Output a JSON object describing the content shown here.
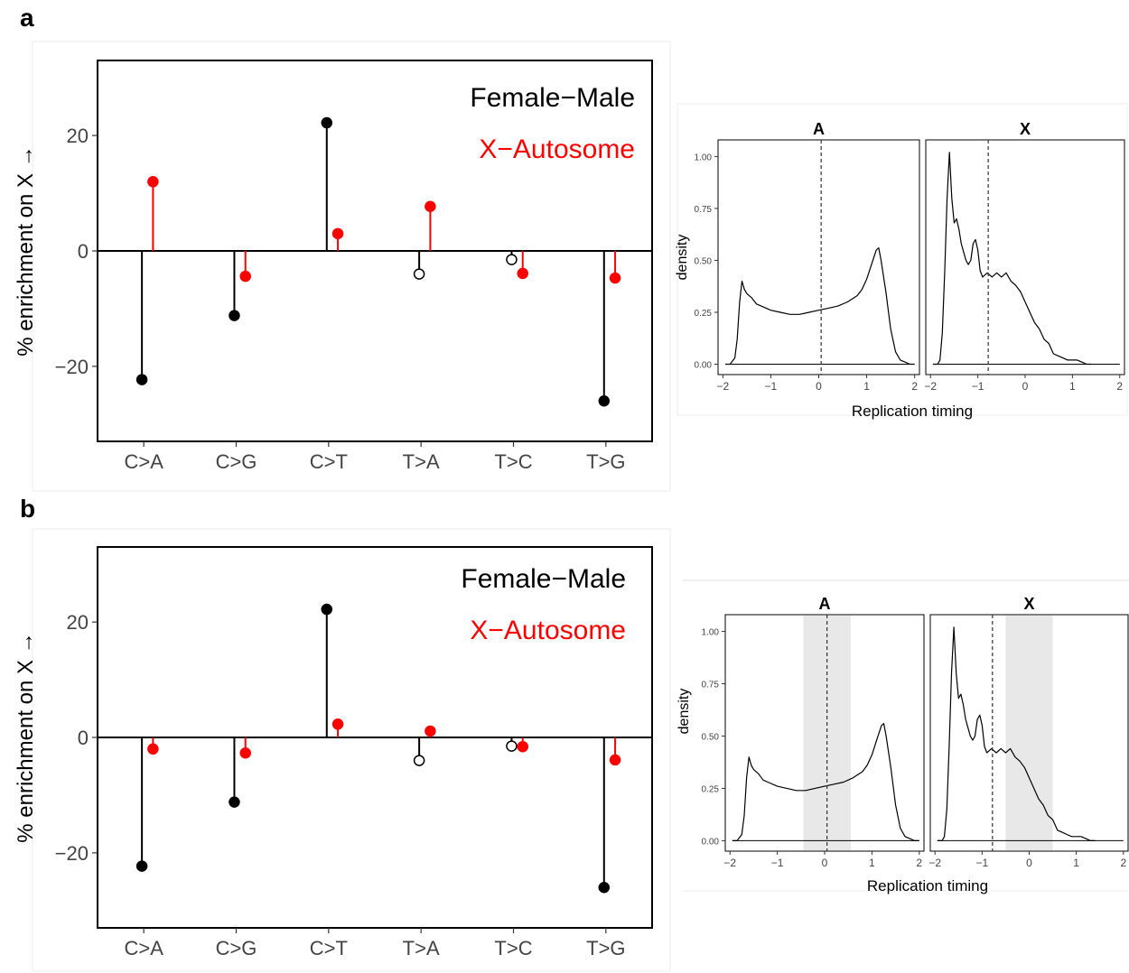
{
  "panels": [
    {
      "letter": "a"
    },
    {
      "letter": "b"
    }
  ],
  "colors": {
    "female_male": "#000000",
    "x_autosome": "#ff0000",
    "shade": "#e8e8e8"
  },
  "chart_data": [
    {
      "id": "a-lollipop",
      "type": "lollipop",
      "ylabel": "% enrichment on X →",
      "ylim": [
        -33,
        33
      ],
      "yticks": [
        -20,
        0,
        20
      ],
      "categories": [
        "C>A",
        "C>G",
        "C>T",
        "T>A",
        "T>C",
        "T>G"
      ],
      "legend_placement": "top-right",
      "series": [
        {
          "name": "Female−Male",
          "color": "#000000",
          "values": [
            -22.3,
            -11.2,
            22.2,
            -4.0,
            -1.5,
            -26.0
          ],
          "open_markers": [
            false,
            false,
            false,
            true,
            true,
            false
          ]
        },
        {
          "name": "X−Autosome",
          "color": "#ff0000",
          "values": [
            12.0,
            -4.4,
            3.0,
            7.7,
            -3.9,
            -4.7
          ],
          "open_markers": [
            false,
            false,
            false,
            false,
            false,
            false
          ]
        }
      ]
    },
    {
      "id": "a-density",
      "type": "line",
      "xlabel": "Replication timing",
      "ylabel": "density",
      "xlim": [
        -2.1,
        2.1
      ],
      "ylim": [
        -0.05,
        1.08
      ],
      "xticks": [
        -2,
        -1,
        0,
        1,
        2
      ],
      "yticks": [
        0.0,
        0.25,
        0.5,
        0.75,
        1.0
      ],
      "ytick_labels": [
        "0.00",
        "0.25",
        "0.50",
        "0.75",
        "1.00"
      ],
      "facets": [
        {
          "title": "A",
          "vline": 0.05,
          "x": [
            -1.95,
            -1.85,
            -1.75,
            -1.7,
            -1.65,
            -1.6,
            -1.55,
            -1.5,
            -1.4,
            -1.3,
            -1.2,
            -1.0,
            -0.8,
            -0.6,
            -0.4,
            -0.2,
            0.0,
            0.2,
            0.4,
            0.6,
            0.8,
            0.9,
            1.0,
            1.1,
            1.2,
            1.25,
            1.3,
            1.4,
            1.5,
            1.6,
            1.7,
            1.8,
            1.9,
            2.0
          ],
          "y": [
            0.0,
            0.0,
            0.03,
            0.12,
            0.3,
            0.4,
            0.36,
            0.34,
            0.32,
            0.29,
            0.28,
            0.26,
            0.25,
            0.24,
            0.24,
            0.25,
            0.26,
            0.27,
            0.28,
            0.3,
            0.33,
            0.36,
            0.41,
            0.48,
            0.55,
            0.56,
            0.5,
            0.35,
            0.17,
            0.06,
            0.02,
            0.01,
            0.0,
            0.0
          ]
        },
        {
          "title": "X",
          "vline": -0.78,
          "x": [
            -1.95,
            -1.85,
            -1.8,
            -1.75,
            -1.7,
            -1.65,
            -1.6,
            -1.55,
            -1.5,
            -1.45,
            -1.4,
            -1.35,
            -1.3,
            -1.25,
            -1.2,
            -1.15,
            -1.1,
            -1.05,
            -1.0,
            -0.95,
            -0.9,
            -0.85,
            -0.8,
            -0.7,
            -0.6,
            -0.5,
            -0.4,
            -0.3,
            -0.2,
            -0.1,
            0.0,
            0.1,
            0.2,
            0.3,
            0.4,
            0.5,
            0.6,
            0.7,
            0.8,
            0.9,
            1.0,
            1.1,
            1.2,
            1.3,
            1.4
          ],
          "y": [
            0.0,
            0.0,
            0.02,
            0.15,
            0.45,
            0.8,
            1.02,
            0.8,
            0.68,
            0.7,
            0.65,
            0.58,
            0.54,
            0.5,
            0.48,
            0.5,
            0.58,
            0.6,
            0.55,
            0.45,
            0.42,
            0.43,
            0.44,
            0.42,
            0.44,
            0.42,
            0.44,
            0.4,
            0.38,
            0.35,
            0.3,
            0.25,
            0.2,
            0.17,
            0.12,
            0.1,
            0.05,
            0.04,
            0.03,
            0.02,
            0.02,
            0.02,
            0.01,
            0.0,
            0.0
          ]
        }
      ]
    },
    {
      "id": "b-lollipop",
      "type": "lollipop",
      "ylabel": "% enrichment on X →",
      "ylim": [
        -33,
        33
      ],
      "yticks": [
        -20,
        0,
        20
      ],
      "categories": [
        "C>A",
        "C>G",
        "C>T",
        "T>A",
        "T>C",
        "T>G"
      ],
      "legend_placement": "top-right",
      "series": [
        {
          "name": "Female−Male",
          "color": "#000000",
          "values": [
            -22.3,
            -11.2,
            22.2,
            -4.0,
            -1.5,
            -26.0
          ],
          "open_markers": [
            false,
            false,
            false,
            true,
            true,
            false
          ]
        },
        {
          "name": "X−Autosome",
          "color": "#ff0000",
          "values": [
            -2.0,
            -2.7,
            2.3,
            1.1,
            -1.6,
            -3.9
          ],
          "open_markers": [
            false,
            false,
            false,
            false,
            false,
            false
          ]
        }
      ]
    },
    {
      "id": "b-density",
      "type": "line",
      "xlabel": "Replication timing",
      "ylabel": "density",
      "xlim": [
        -2.1,
        2.1
      ],
      "ylim": [
        -0.05,
        1.08
      ],
      "xticks": [
        -2,
        -1,
        0,
        1,
        2
      ],
      "yticks": [
        0.0,
        0.25,
        0.5,
        0.75,
        1.0
      ],
      "ytick_labels": [
        "0.00",
        "0.25",
        "0.50",
        "0.75",
        "1.00"
      ],
      "facets": [
        {
          "title": "A",
          "vline": 0.05,
          "shade": [
            -0.45,
            0.55
          ],
          "x": [
            -1.95,
            -1.85,
            -1.75,
            -1.7,
            -1.65,
            -1.6,
            -1.55,
            -1.5,
            -1.4,
            -1.3,
            -1.2,
            -1.0,
            -0.8,
            -0.6,
            -0.4,
            -0.2,
            0.0,
            0.2,
            0.4,
            0.6,
            0.8,
            0.9,
            1.0,
            1.1,
            1.2,
            1.25,
            1.3,
            1.4,
            1.5,
            1.6,
            1.7,
            1.8,
            1.9,
            2.0
          ],
          "y": [
            0.0,
            0.0,
            0.03,
            0.12,
            0.3,
            0.4,
            0.36,
            0.34,
            0.32,
            0.29,
            0.28,
            0.26,
            0.25,
            0.24,
            0.24,
            0.25,
            0.26,
            0.27,
            0.28,
            0.3,
            0.33,
            0.36,
            0.41,
            0.48,
            0.55,
            0.56,
            0.5,
            0.35,
            0.17,
            0.06,
            0.02,
            0.01,
            0.0,
            0.0
          ]
        },
        {
          "title": "X",
          "vline": -0.78,
          "shade": [
            -0.5,
            0.5
          ],
          "x": [
            -1.95,
            -1.85,
            -1.8,
            -1.75,
            -1.7,
            -1.65,
            -1.6,
            -1.55,
            -1.5,
            -1.45,
            -1.4,
            -1.35,
            -1.3,
            -1.25,
            -1.2,
            -1.15,
            -1.1,
            -1.05,
            -1.0,
            -0.95,
            -0.9,
            -0.85,
            -0.8,
            -0.7,
            -0.6,
            -0.5,
            -0.4,
            -0.3,
            -0.2,
            -0.1,
            0.0,
            0.1,
            0.2,
            0.3,
            0.4,
            0.5,
            0.6,
            0.7,
            0.8,
            0.9,
            1.0,
            1.1,
            1.2,
            1.3,
            1.4
          ],
          "y": [
            0.0,
            0.0,
            0.02,
            0.15,
            0.45,
            0.8,
            1.02,
            0.8,
            0.68,
            0.7,
            0.65,
            0.58,
            0.54,
            0.5,
            0.48,
            0.5,
            0.58,
            0.6,
            0.55,
            0.45,
            0.42,
            0.43,
            0.44,
            0.42,
            0.44,
            0.42,
            0.44,
            0.4,
            0.38,
            0.35,
            0.3,
            0.25,
            0.2,
            0.17,
            0.12,
            0.1,
            0.05,
            0.04,
            0.03,
            0.02,
            0.02,
            0.02,
            0.01,
            0.0,
            0.0
          ]
        }
      ]
    }
  ]
}
